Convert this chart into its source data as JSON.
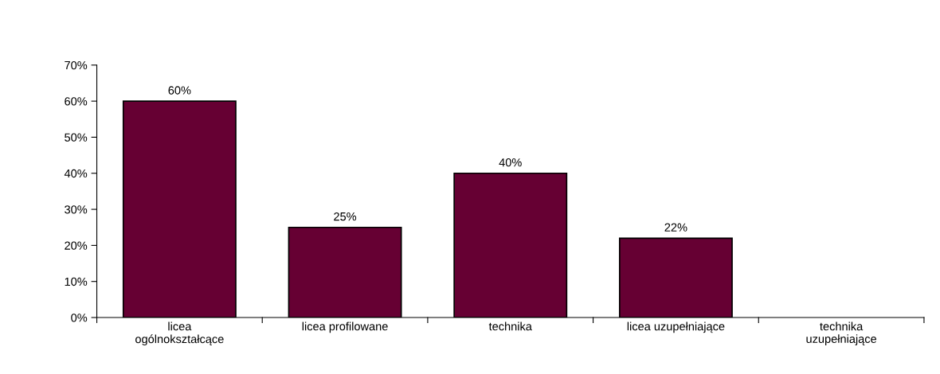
{
  "chart_data": {
    "type": "bar",
    "categories": [
      "licea\nogólnokształcące",
      "licea profilowane",
      "technika",
      "licea uzupełniające",
      "technika\nuzupełniające"
    ],
    "values": [
      60,
      25,
      40,
      22,
      null
    ],
    "value_labels": [
      "60%",
      "25%",
      "40%",
      "22%",
      null
    ],
    "color": "#660033",
    "ylim": [
      0,
      70
    ],
    "yticks": [
      {
        "value": 0,
        "label": "0%"
      },
      {
        "value": 10,
        "label": "10%"
      },
      {
        "value": 20,
        "label": "20%"
      },
      {
        "value": 30,
        "label": "30%"
      },
      {
        "value": 40,
        "label": "40%"
      },
      {
        "value": 50,
        "label": "50%"
      },
      {
        "value": 60,
        "label": "60%"
      },
      {
        "value": 70,
        "label": "70%"
      }
    ],
    "grid": false,
    "legend": false
  }
}
